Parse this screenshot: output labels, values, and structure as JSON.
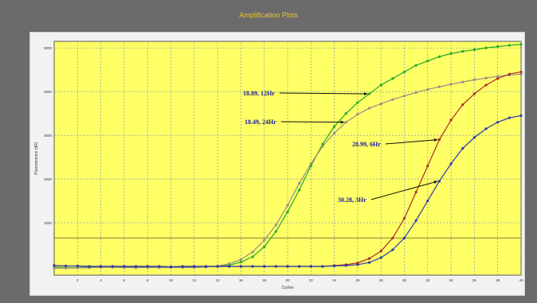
{
  "window": {
    "title": "Amplification Plots"
  },
  "chart_data": {
    "type": "line",
    "title": "",
    "xlabel": "Cycles",
    "ylabel": "Fluorescence (dR)",
    "xlim": [
      0,
      40
    ],
    "ylim": [
      -200,
      5150
    ],
    "xticks": [
      2,
      4,
      6,
      8,
      10,
      12,
      14,
      16,
      18,
      20,
      22,
      24,
      26,
      28,
      30,
      32,
      34,
      36,
      38,
      40
    ],
    "yticks": [
      1000,
      2000,
      3000,
      4000,
      5000
    ],
    "threshold": 650,
    "grid": true,
    "background_color": "#ffff66",
    "annotations": [
      {
        "text": "18.89, 12Hr",
        "target_series": "12Hr",
        "at_x": 27
      },
      {
        "text": "18.49, 24Hr",
        "target_series": "24Hr",
        "at_x": 25
      },
      {
        "text": "28.99, 6Hr",
        "target_series": "6Hr",
        "at_x": 33
      },
      {
        "text": "30.28, 3Hr",
        "target_series": "3Hr",
        "at_x": 33
      }
    ],
    "x": [
      0,
      1,
      2,
      3,
      4,
      5,
      6,
      7,
      8,
      9,
      10,
      11,
      12,
      13,
      14,
      15,
      16,
      17,
      18,
      19,
      20,
      21,
      22,
      23,
      24,
      25,
      26,
      27,
      28,
      29,
      30,
      31,
      32,
      33,
      34,
      35,
      36,
      37,
      38,
      39,
      40
    ],
    "series": [
      {
        "name": "12Hr",
        "color": "#22aa22",
        "values": [
          -20,
          -30,
          -25,
          -20,
          -10,
          -10,
          -20,
          -20,
          -15,
          -20,
          -15,
          -20,
          -20,
          -10,
          0,
          30,
          100,
          220,
          450,
          800,
          1250,
          1750,
          2300,
          2800,
          3200,
          3500,
          3750,
          3950,
          4150,
          4300,
          4450,
          4600,
          4700,
          4800,
          4870,
          4920,
          4960,
          5000,
          5030,
          5060,
          5080
        ]
      },
      {
        "name": "24Hr",
        "color": "#9a8a8a",
        "values": [
          -40,
          -40,
          -35,
          -30,
          -20,
          -20,
          -25,
          -30,
          -25,
          -25,
          -25,
          -25,
          -25,
          -15,
          10,
          60,
          160,
          330,
          600,
          950,
          1400,
          1900,
          2350,
          2750,
          3050,
          3300,
          3480,
          3620,
          3720,
          3820,
          3900,
          3980,
          4050,
          4110,
          4170,
          4220,
          4270,
          4310,
          4350,
          4380,
          4400
        ]
      },
      {
        "name": "6Hr",
        "color": "#aa2a2a",
        "values": [
          20,
          10,
          10,
          0,
          0,
          0,
          0,
          0,
          0,
          0,
          -10,
          0,
          0,
          0,
          0,
          0,
          0,
          0,
          0,
          0,
          0,
          0,
          0,
          0,
          20,
          40,
          80,
          180,
          350,
          650,
          1100,
          1700,
          2300,
          2900,
          3350,
          3700,
          3950,
          4150,
          4300,
          4400,
          4450
        ]
      },
      {
        "name": "3Hr",
        "color": "#2a3aaa",
        "values": [
          20,
          10,
          10,
          0,
          0,
          0,
          0,
          0,
          0,
          0,
          -10,
          0,
          0,
          0,
          0,
          0,
          0,
          0,
          0,
          0,
          0,
          0,
          0,
          0,
          10,
          20,
          40,
          90,
          200,
          380,
          650,
          1050,
          1500,
          1950,
          2350,
          2700,
          2950,
          3150,
          3300,
          3400,
          3450
        ]
      }
    ]
  }
}
